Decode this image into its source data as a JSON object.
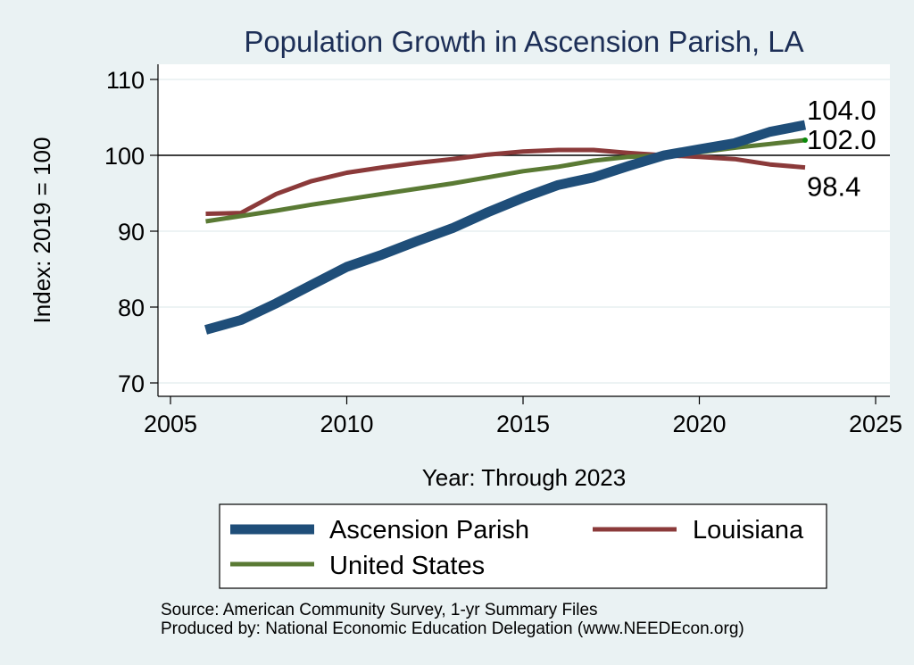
{
  "chart_data": {
    "type": "line",
    "title": "Population Growth in Ascension Parish, LA",
    "xlabel": "Year: Through 2023",
    "ylabel": "Index: 2019 = 100",
    "xlim": [
      2005,
      2025
    ],
    "ylim": [
      70,
      110
    ],
    "x_ticks": [
      2005,
      2010,
      2015,
      2020,
      2025
    ],
    "y_ticks": [
      70,
      80,
      90,
      100,
      110
    ],
    "reference_line": 100,
    "grid": true,
    "legend_position": "bottom",
    "x": [
      2006,
      2007,
      2008,
      2009,
      2010,
      2011,
      2012,
      2013,
      2014,
      2015,
      2016,
      2017,
      2018,
      2019,
      2020,
      2021,
      2022,
      2023
    ],
    "series": [
      {
        "name": "Ascension Parish",
        "color": "#1f4e79",
        "values": [
          77.0,
          78.3,
          80.5,
          82.9,
          85.3,
          86.9,
          88.7,
          90.4,
          92.5,
          94.4,
          96.1,
          97.1,
          98.6,
          100.0,
          100.8,
          101.6,
          103.1,
          104.0
        ],
        "end_label": "104.0"
      },
      {
        "name": "Louisiana",
        "color": "#8b3a3a",
        "values": [
          92.3,
          92.4,
          94.9,
          96.6,
          97.7,
          98.4,
          99.0,
          99.5,
          100.1,
          100.5,
          100.7,
          100.7,
          100.3,
          100.0,
          99.8,
          99.5,
          98.8,
          98.4
        ],
        "end_label": "98.4"
      },
      {
        "name": "United States",
        "color": "#5a7a34",
        "values": [
          91.3,
          92.0,
          92.7,
          93.5,
          94.2,
          94.9,
          95.6,
          96.3,
          97.1,
          97.9,
          98.5,
          99.3,
          99.8,
          100.0,
          100.4,
          101.0,
          101.5,
          102.0
        ],
        "end_label": "102.0"
      }
    ],
    "legend": [
      "Ascension Parish",
      "Louisiana",
      "United States"
    ],
    "source_note": "Source: American Community Survey, 1-yr Summary Files",
    "producer_note": "Produced by: National Economic Education Delegation (www.NEEDEcon.org)"
  }
}
